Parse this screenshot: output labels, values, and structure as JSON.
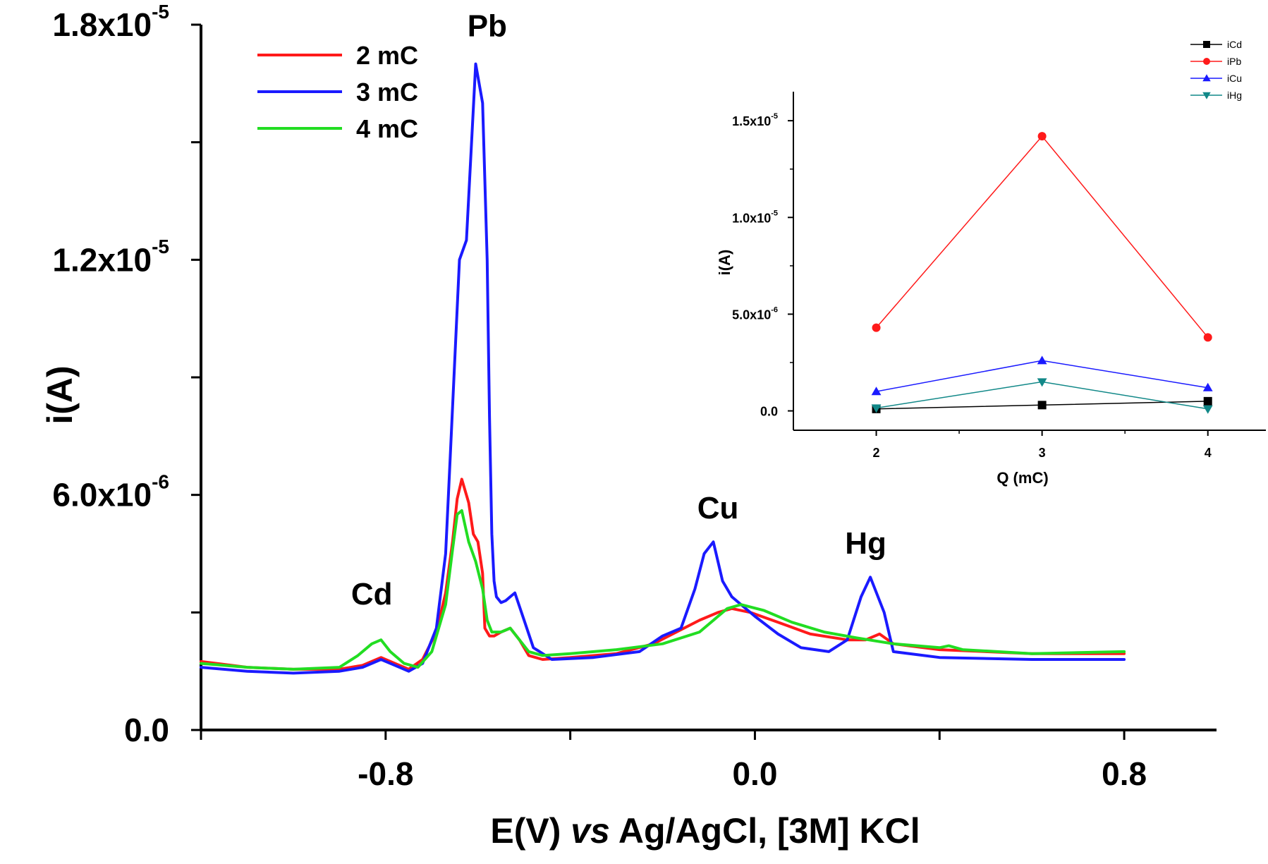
{
  "chart_data": [
    {
      "type": "line",
      "title": "",
      "xlabel": {
        "pre": "E(V) ",
        "italic": "vs",
        "post": " Ag/AgCl, [3M] KCl"
      },
      "ylabel": "i(A)",
      "xlim": [
        -1.2,
        1.0
      ],
      "ylim": [
        0,
        1.8e-05
      ],
      "xticks": [
        -1.2,
        -0.8,
        -0.4,
        0.0,
        0.4,
        0.8
      ],
      "xtick_labels": [
        {
          "value": -0.8,
          "label": "-0.8"
        },
        {
          "value": 0.0,
          "label": "0.0"
        },
        {
          "value": 0.8,
          "label": "0.8"
        }
      ],
      "yticks": [
        0,
        3e-06,
        6e-06,
        9e-06,
        1.2e-05,
        1.5e-05,
        1.8e-05
      ],
      "ytick_labels": [
        {
          "value": 0,
          "label": "0.0"
        },
        {
          "value": 6e-06,
          "label": "6.0x10",
          "exp": "-6"
        },
        {
          "value": 1.2e-05,
          "label": "1.2x10",
          "exp": "-5"
        },
        {
          "value": 1.8e-05,
          "label": "1.8x10",
          "exp": "-5"
        }
      ],
      "legend": {
        "position": "top-left"
      },
      "annotations": [
        {
          "text": "Pb",
          "x": -0.58,
          "y": 1.77e-05
        },
        {
          "text": "Cd",
          "x": -0.83,
          "y": 3.2e-06
        },
        {
          "text": "Cu",
          "x": -0.08,
          "y": 5.4e-06
        },
        {
          "text": "Hg",
          "x": 0.24,
          "y": 4.5e-06
        }
      ],
      "series": [
        {
          "name": "2 mC",
          "color": "#ff1a1a",
          "x": [
            -1.2,
            -1.1,
            -1.0,
            -0.9,
            -0.85,
            -0.81,
            -0.78,
            -0.75,
            -0.72,
            -0.69,
            -0.67,
            -0.655,
            -0.645,
            -0.635,
            -0.62,
            -0.61,
            -0.6,
            -0.59,
            -0.585,
            -0.575,
            -0.565,
            -0.55,
            -0.53,
            -0.51,
            -0.49,
            -0.46,
            -0.4,
            -0.3,
            -0.22,
            -0.17,
            -0.12,
            -0.08,
            -0.05,
            -0.01,
            0.05,
            0.12,
            0.2,
            0.24,
            0.27,
            0.3,
            0.4,
            0.6,
            0.8
          ],
          "y": [
            1.75e-06,
            1.6e-06,
            1.55e-06,
            1.55e-06,
            1.65e-06,
            1.85e-06,
            1.7e-06,
            1.55e-06,
            1.8e-06,
            2.5e-06,
            3.5e-06,
            4.8e-06,
            5.9e-06,
            6.4e-06,
            5.8e-06,
            5e-06,
            4.8e-06,
            4e-06,
            2.6e-06,
            2.4e-06,
            2.4e-06,
            2.5e-06,
            2.6e-06,
            2.3e-06,
            1.9e-06,
            1.8e-06,
            1.85e-06,
            1.95e-06,
            2.2e-06,
            2.5e-06,
            2.8e-06,
            3e-06,
            3.1e-06,
            3e-06,
            2.75e-06,
            2.45e-06,
            2.3e-06,
            2.3e-06,
            2.45e-06,
            2.2e-06,
            2.05e-06,
            1.95e-06,
            1.95e-06
          ]
        },
        {
          "name": "3 mC",
          "color": "#1a1aff",
          "x": [
            -1.2,
            -1.1,
            -1.0,
            -0.9,
            -0.85,
            -0.81,
            -0.78,
            -0.75,
            -0.72,
            -0.69,
            -0.67,
            -0.66,
            -0.65,
            -0.64,
            -0.625,
            -0.605,
            -0.59,
            -0.58,
            -0.575,
            -0.57,
            -0.565,
            -0.56,
            -0.55,
            -0.54,
            -0.53,
            -0.52,
            -0.5,
            -0.48,
            -0.44,
            -0.35,
            -0.25,
            -0.2,
            -0.16,
            -0.13,
            -0.11,
            -0.09,
            -0.07,
            -0.05,
            0.0,
            0.05,
            0.1,
            0.16,
            0.2,
            0.23,
            0.25,
            0.28,
            0.3,
            0.4,
            0.6,
            0.8
          ],
          "y": [
            1.6e-06,
            1.5e-06,
            1.45e-06,
            1.5e-06,
            1.6e-06,
            1.8e-06,
            1.65e-06,
            1.5e-06,
            1.7e-06,
            2.6e-06,
            4.5e-06,
            7e-06,
            9.5e-06,
            1.2e-05,
            1.25e-05,
            1.7e-05,
            1.6e-05,
            1.2e-05,
            8e-06,
            5e-06,
            3.8e-06,
            3.4e-06,
            3.25e-06,
            3.3e-06,
            3.4e-06,
            3.5e-06,
            2.8e-06,
            2.1e-06,
            1.8e-06,
            1.85e-06,
            2e-06,
            2.4e-06,
            2.6e-06,
            3.6e-06,
            4.5e-06,
            4.8e-06,
            3.8e-06,
            3.4e-06,
            2.9e-06,
            2.45e-06,
            2.1e-06,
            2e-06,
            2.3e-06,
            3.4e-06,
            3.9e-06,
            3e-06,
            2e-06,
            1.85e-06,
            1.8e-06,
            1.8e-06
          ]
        },
        {
          "name": "4 mC",
          "color": "#22dd22",
          "x": [
            -1.2,
            -1.1,
            -1.0,
            -0.9,
            -0.86,
            -0.83,
            -0.81,
            -0.79,
            -0.76,
            -0.73,
            -0.7,
            -0.67,
            -0.655,
            -0.645,
            -0.635,
            -0.62,
            -0.605,
            -0.59,
            -0.58,
            -0.57,
            -0.55,
            -0.53,
            -0.51,
            -0.49,
            -0.46,
            -0.4,
            -0.3,
            -0.2,
            -0.12,
            -0.06,
            -0.03,
            0.02,
            0.08,
            0.15,
            0.22,
            0.3,
            0.4,
            0.42,
            0.45,
            0.6,
            0.8
          ],
          "y": [
            1.7e-06,
            1.6e-06,
            1.55e-06,
            1.6e-06,
            1.9e-06,
            2.2e-06,
            2.3e-06,
            2e-06,
            1.7e-06,
            1.6e-06,
            2e-06,
            3.2e-06,
            4.6e-06,
            5.5e-06,
            5.6e-06,
            4.8e-06,
            4.3e-06,
            3.6e-06,
            2.8e-06,
            2.5e-06,
            2.5e-06,
            2.6e-06,
            2.3e-06,
            2e-06,
            1.9e-06,
            1.95e-06,
            2.05e-06,
            2.2e-06,
            2.5e-06,
            3.1e-06,
            3.2e-06,
            3.05e-06,
            2.75e-06,
            2.5e-06,
            2.35e-06,
            2.2e-06,
            2.1e-06,
            2.15e-06,
            2.05e-06,
            1.95e-06,
            2e-06
          ]
        }
      ]
    },
    {
      "type": "line",
      "title": "",
      "xlabel": "Q (mC)",
      "ylabel": "i(A)",
      "xlim": [
        1.5,
        4.35
      ],
      "ylim": [
        -1e-06,
        1.65e-05
      ],
      "xticks": [
        2,
        3,
        4
      ],
      "yticks": [
        0,
        5e-06,
        1e-05,
        1.5e-05
      ],
      "ytick_labels": [
        {
          "value": 0,
          "label": "0.0"
        },
        {
          "value": 5e-06,
          "label": "5.0x10",
          "exp": "-6"
        },
        {
          "value": 1e-05,
          "label": "1.0x10",
          "exp": "-5"
        },
        {
          "value": 1.5e-05,
          "label": "1.5x10",
          "exp": "-5"
        }
      ],
      "legend": {
        "position": "top-right"
      },
      "series": [
        {
          "name": "iCd",
          "color": "#000000",
          "marker": "square",
          "x": [
            2,
            3,
            4
          ],
          "y": [
            1e-07,
            3e-07,
            5e-07
          ]
        },
        {
          "name": "iPb",
          "color": "#ff1a1a",
          "marker": "circle",
          "x": [
            2,
            3,
            4
          ],
          "y": [
            4.3e-06,
            1.42e-05,
            3.8e-06
          ]
        },
        {
          "name": "iCu",
          "color": "#1a1aff",
          "marker": "triangle-up",
          "x": [
            2,
            3,
            4
          ],
          "y": [
            1e-06,
            2.6e-06,
            1.2e-06
          ]
        },
        {
          "name": "iHg",
          "color": "#118888",
          "marker": "triangle-down",
          "x": [
            2,
            3,
            4
          ],
          "y": [
            1.5e-07,
            1.5e-06,
            1e-07
          ]
        }
      ]
    }
  ]
}
